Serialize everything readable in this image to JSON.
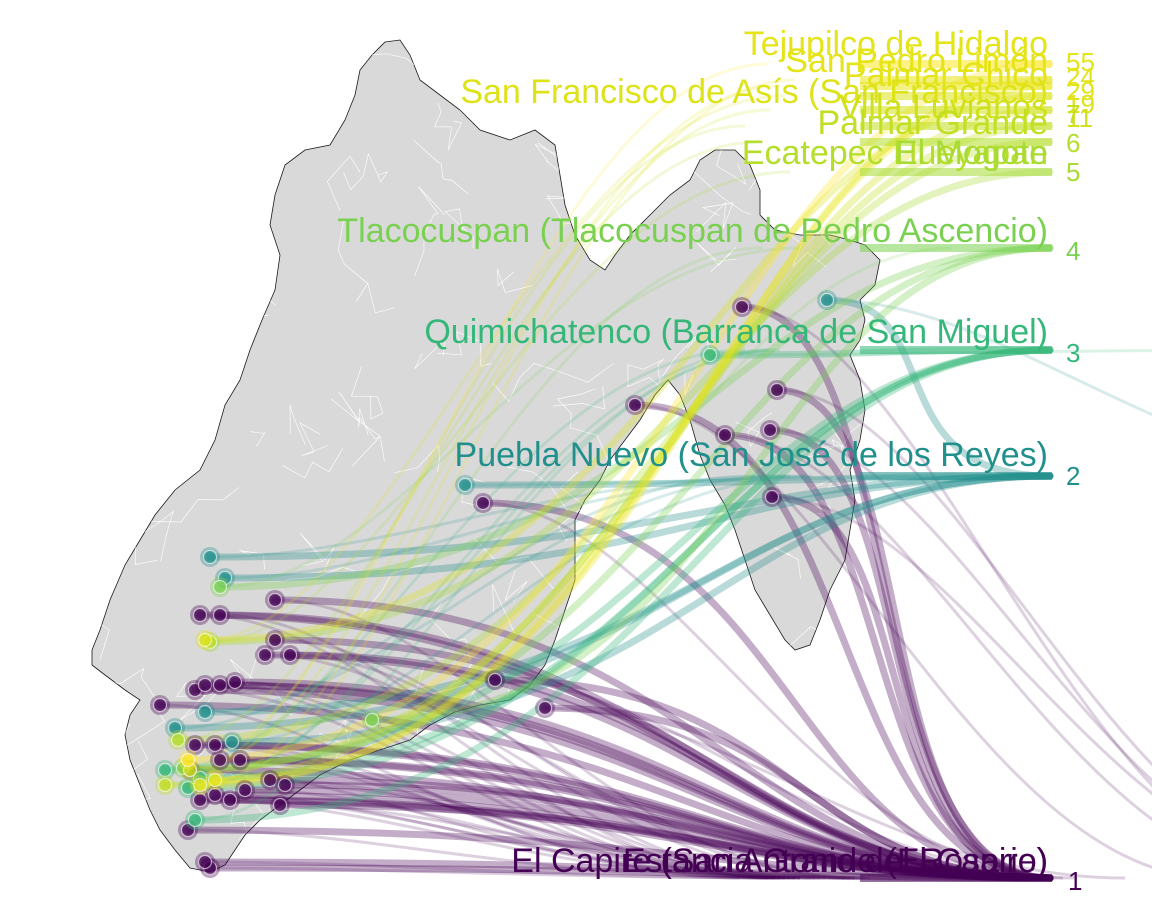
{
  "colors": {
    "background": "#ffffff",
    "land": "#d9d9d9",
    "border_inner": "#ffffff",
    "border_outer": "#1a1a1a",
    "levels": {
      "1": "#440154",
      "2": "#21908c",
      "3": "#35b779",
      "4": "#7ad151",
      "5": "#a8db34",
      "6": "#b5de2b",
      "7": "#c2df23",
      "11": "#d0e11c",
      "19": "#dde318",
      "24": "#e5e419",
      "29": "#e9e51a",
      "55": "#fde725"
    }
  },
  "scale_labels": [
    {
      "id": "v55",
      "text": "55",
      "color": "#e5e419"
    },
    {
      "id": "v24",
      "text": "24",
      "color": "#e5e419"
    },
    {
      "id": "v29",
      "text": "29",
      "color": "#e5e419"
    },
    {
      "id": "v19",
      "text": "19",
      "color": "#dde318"
    },
    {
      "id": "v11",
      "text": "11",
      "color": "#d0e11c"
    },
    {
      "id": "v7",
      "text": "7",
      "color": "#c2df23"
    },
    {
      "id": "v6",
      "text": "6",
      "color": "#b5de2b"
    },
    {
      "id": "v5",
      "text": "5",
      "color": "#a8db34"
    },
    {
      "id": "v4",
      "text": "4",
      "color": "#7ad151"
    },
    {
      "id": "v3",
      "text": "3",
      "color": "#35b779"
    },
    {
      "id": "v2",
      "text": "2",
      "color": "#21908c"
    },
    {
      "id": "v1",
      "text": "1",
      "color": "#440154"
    }
  ],
  "place_labels": [
    {
      "id": "p1",
      "text": "Tejupilco de Hidalgo",
      "color": "#e5e419"
    },
    {
      "id": "p2",
      "text": "San Pedro Limón",
      "color": "#e5e419"
    },
    {
      "id": "p3",
      "text": "Palmar Chico",
      "color": "#e5e419"
    },
    {
      "id": "p4",
      "text": "San Francisco de Asís (San Francisco)",
      "color": "#dde318"
    },
    {
      "id": "p5",
      "text": "Villa Luvianos",
      "color": "#d0e11c"
    },
    {
      "id": "p6",
      "text": "Palmar Grande",
      "color": "#c2df23"
    },
    {
      "id": "p7",
      "text": "Ecatepec Hueyapan",
      "color": "#b5de2b"
    },
    {
      "id": "p8",
      "text": "El Mogote",
      "color": "#a8db34"
    },
    {
      "id": "p9",
      "text": "Tlacocuspan (Tlacocuspan de Pedro Ascencio)",
      "color": "#7ad151"
    },
    {
      "id": "p10",
      "text": "Quimichatenco (Barranca de San Miguel)",
      "color": "#35b779"
    },
    {
      "id": "p11",
      "text": "Puebla Nuevo (San José de los Reyes)",
      "color": "#21908c"
    },
    {
      "id": "p12",
      "text": "Estancia Grande (El Capire)",
      "color": "#440154"
    },
    {
      "id": "p13",
      "text": "El Capire (San Antonio del Rosario)",
      "color": "#440154"
    }
  ]
}
